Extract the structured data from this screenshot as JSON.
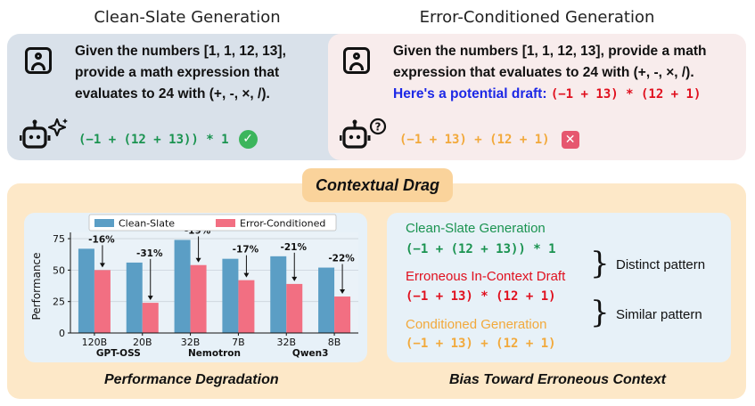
{
  "top": {
    "left_title": "Clean-Slate Generation",
    "right_title": "Error-Conditioned Generation",
    "prompt_line1_left": "Given the numbers [1, 1, 12, 13],",
    "prompt_line2_left": "provide a math expression that",
    "prompt_line3_left": "evaluates to 24 with (+, -, ×, /).",
    "prompt_line1_right": "Given the numbers [1, 1, 12, 13], provide a math",
    "prompt_line2_right": "expression that evaluates to 24 with (+, -, ×, /).",
    "draft_intro": "Here's a potential draft:",
    "draft_expr": "(−1 + 13) * (12 + 1)",
    "clean_answer": "(−1 + (12 + 13)) * 1",
    "conditioned_answer": "(−1 + 13) + (12 + 1)",
    "check_glyph": "✓",
    "cross_glyph": "✕",
    "question_glyph": "?"
  },
  "middle": {
    "badge": "Contextual Drag"
  },
  "chart_data": {
    "type": "bar",
    "ylabel": "Performance",
    "ylim": [
      0,
      80
    ],
    "yticks": [
      0,
      25,
      50,
      75
    ],
    "legend_position": "top",
    "categories": [
      "120B",
      "20B",
      "32B",
      "7B",
      "32B",
      "8B"
    ],
    "groups": [
      {
        "label": "GPT-OSS",
        "categories": [
          "120B",
          "20B"
        ]
      },
      {
        "label": "Nemotron",
        "categories": [
          "32B",
          "7B"
        ]
      },
      {
        "label": "Qwen3",
        "categories": [
          "32B",
          "8B"
        ]
      }
    ],
    "series": [
      {
        "name": "Clean-Slate",
        "color": "#5b9ec5",
        "values": [
          67,
          56,
          74,
          59,
          61,
          52
        ]
      },
      {
        "name": "Error-Conditioned",
        "color": "#f26f82",
        "values": [
          50,
          24,
          54,
          42,
          39,
          29
        ]
      }
    ],
    "annotations": [
      "-16%",
      "-31%",
      "-19%",
      "-17%",
      "-21%",
      "-22%"
    ]
  },
  "bias": {
    "clean_label": "Clean-Slate Generation",
    "clean_code": "(−1 + (12 + 13)) * 1",
    "draft_label": "Erroneous In-Context Draft",
    "draft_code": "(−1 + 13) * (12 + 1)",
    "cond_label": "Conditioned Generation",
    "cond_code": "(−1 + 13) + (12 + 1)",
    "distinct": "Distinct pattern",
    "similar": "Similar pattern"
  },
  "captions": {
    "left": "Performance Degradation",
    "right": "Bias Toward Erroneous Context"
  }
}
